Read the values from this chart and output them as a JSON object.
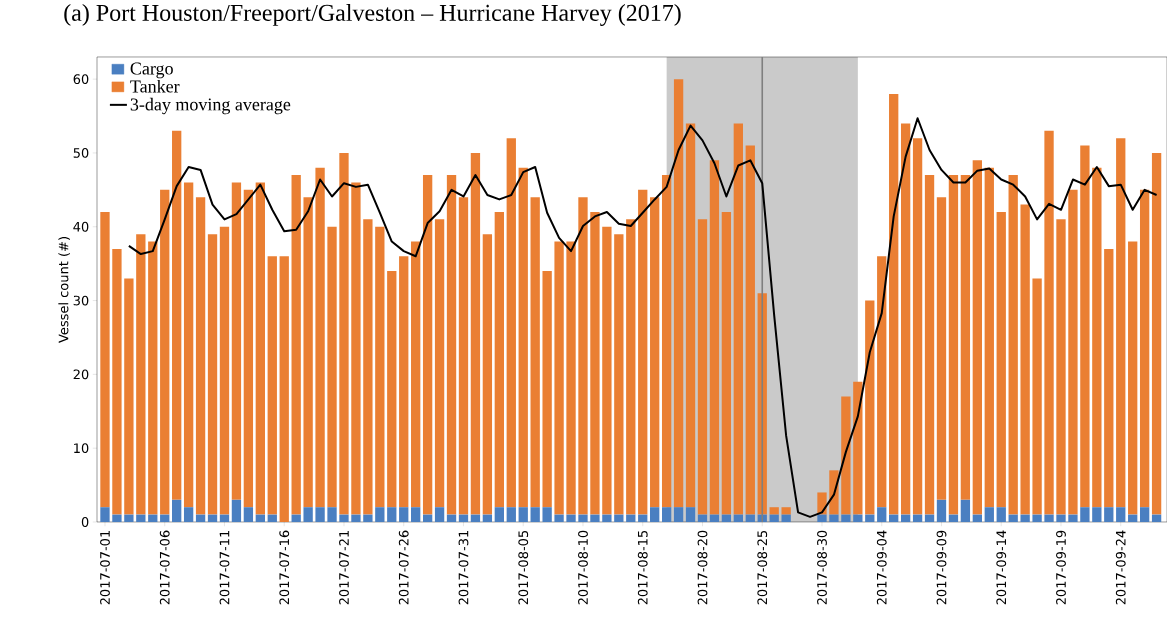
{
  "chart_data": {
    "type": "bar",
    "title": "(a)  Port Houston/Freeport/Galveston – Hurricane Harvey (2017)",
    "ylabel": "Vessel count (#)",
    "stacked": true,
    "legend": "top left",
    "x": [
      "2017-07-01",
      "2017-07-02",
      "2017-07-03",
      "2017-07-04",
      "2017-07-05",
      "2017-07-06",
      "2017-07-07",
      "2017-07-08",
      "2017-07-09",
      "2017-07-10",
      "2017-07-11",
      "2017-07-12",
      "2017-07-13",
      "2017-07-14",
      "2017-07-15",
      "2017-07-16",
      "2017-07-17",
      "2017-07-18",
      "2017-07-19",
      "2017-07-20",
      "2017-07-21",
      "2017-07-22",
      "2017-07-23",
      "2017-07-24",
      "2017-07-25",
      "2017-07-26",
      "2017-07-27",
      "2017-07-28",
      "2017-07-29",
      "2017-07-30",
      "2017-07-31",
      "2017-08-01",
      "2017-08-02",
      "2017-08-03",
      "2017-08-04",
      "2017-08-05",
      "2017-08-06",
      "2017-08-07",
      "2017-08-08",
      "2017-08-09",
      "2017-08-10",
      "2017-08-11",
      "2017-08-12",
      "2017-08-13",
      "2017-08-14",
      "2017-08-15",
      "2017-08-16",
      "2017-08-17",
      "2017-08-18",
      "2017-08-19",
      "2017-08-20",
      "2017-08-21",
      "2017-08-22",
      "2017-08-23",
      "2017-08-24",
      "2017-08-25",
      "2017-08-26",
      "2017-08-27",
      "2017-08-28",
      "2017-08-29",
      "2017-08-30",
      "2017-08-31",
      "2017-09-01",
      "2017-09-02",
      "2017-09-03",
      "2017-09-04",
      "2017-09-05",
      "2017-09-06",
      "2017-09-07",
      "2017-09-08",
      "2017-09-09",
      "2017-09-10",
      "2017-09-11",
      "2017-09-12",
      "2017-09-13",
      "2017-09-14",
      "2017-09-15",
      "2017-09-16",
      "2017-09-17",
      "2017-09-18",
      "2017-09-19",
      "2017-09-20",
      "2017-09-21",
      "2017-09-22",
      "2017-09-23",
      "2017-09-24",
      "2017-09-25",
      "2017-09-26",
      "2017-09-27"
    ],
    "series": [
      {
        "name": "Cargo",
        "type": "bar",
        "color": "#4a7fc1",
        "values": [
          2,
          1,
          1,
          1,
          1,
          1,
          3,
          2,
          1,
          1,
          1,
          3,
          2,
          1,
          1,
          0,
          1,
          2,
          2,
          2,
          1,
          1,
          1,
          2,
          2,
          2,
          2,
          1,
          2,
          1,
          1,
          1,
          1,
          2,
          2,
          2,
          2,
          2,
          1,
          1,
          1,
          1,
          1,
          1,
          1,
          1,
          2,
          2,
          2,
          2,
          1,
          1,
          1,
          1,
          1,
          1,
          1,
          1,
          0,
          0,
          1,
          1,
          1,
          1,
          1,
          2,
          1,
          1,
          1,
          1,
          3,
          1,
          3,
          1,
          2,
          2,
          1,
          1,
          1,
          1,
          1,
          1,
          2,
          2,
          2,
          2,
          1,
          2,
          1
        ]
      },
      {
        "name": "Tanker",
        "type": "bar",
        "color": "#ea7f33",
        "values": [
          40,
          36,
          32,
          38,
          37,
          44,
          50,
          44,
          43,
          38,
          39,
          43,
          43,
          45,
          35,
          36,
          46,
          42,
          46,
          38,
          49,
          45,
          40,
          38,
          32,
          34,
          36,
          46,
          39,
          46,
          43,
          49,
          38,
          40,
          50,
          46,
          42,
          32,
          37,
          37,
          43,
          41,
          39,
          38,
          40,
          44,
          42,
          45,
          58,
          52,
          40,
          48,
          41,
          53,
          50,
          30,
          1,
          1,
          0,
          0,
          3,
          6,
          16,
          18,
          29,
          34,
          57,
          53,
          51,
          46,
          41,
          46,
          44,
          48,
          46,
          40,
          46,
          42,
          32,
          52,
          40,
          44,
          49,
          46,
          35,
          50,
          37,
          43,
          49
        ]
      },
      {
        "name": "3-day moving average",
        "type": "line",
        "color": "#000000",
        "marker": "none",
        "line_style": "solid",
        "values": [
          null,
          null,
          37.4,
          36.3,
          36.7,
          41.0,
          45.5,
          48.1,
          47.7,
          43.0,
          41.0,
          41.7,
          43.7,
          45.7,
          42.3,
          39.4,
          39.6,
          42.1,
          46.4,
          44.1,
          45.9,
          45.4,
          45.7,
          41.9,
          38.0,
          36.7,
          36.0,
          40.5,
          42.1,
          45.0,
          44.1,
          47.0,
          44.3,
          43.7,
          44.3,
          47.4,
          48.1,
          41.9,
          38.5,
          36.7,
          40.1,
          41.4,
          42.0,
          40.4,
          40.1,
          41.9,
          43.7,
          45.4,
          50.4,
          53.7,
          51.7,
          48.6,
          44.1,
          48.3,
          49.0,
          45.9,
          28.0,
          11.7,
          1.3,
          0.7,
          1.3,
          3.7,
          9.5,
          14.3,
          23.0,
          28.3,
          41.4,
          49.5,
          54.7,
          50.4,
          47.7,
          46.0,
          46.0,
          47.6,
          47.9,
          46.4,
          45.7,
          44.1,
          41.0,
          43.1,
          42.3,
          46.4,
          45.7,
          48.1,
          45.5,
          45.7,
          42.3,
          45.0,
          44.3
        ]
      }
    ],
    "xlim": [
      "2017-06-30T08:00",
      "2017-09-27T21:00"
    ],
    "xticks": [
      "2017-07-01",
      "2017-07-06",
      "2017-07-11",
      "2017-07-16",
      "2017-07-21",
      "2017-07-26",
      "2017-07-31",
      "2017-08-05",
      "2017-08-10",
      "2017-08-15",
      "2017-08-20",
      "2017-08-25",
      "2017-08-30",
      "2017-09-04",
      "2017-09-09",
      "2017-09-14",
      "2017-09-19",
      "2017-09-24"
    ],
    "ylim": [
      0,
      63
    ],
    "yticks": [
      0,
      10,
      20,
      30,
      40,
      50,
      60
    ],
    "bands": [
      {
        "axis": "x",
        "from": "2017-08-17",
        "to": "2017-09-02",
        "color": "#cacaca"
      }
    ],
    "ref_lines": [
      {
        "axis": "x",
        "value": "2017-08-25",
        "color": "#7f7f7f",
        "line_style": "solid"
      }
    ]
  }
}
